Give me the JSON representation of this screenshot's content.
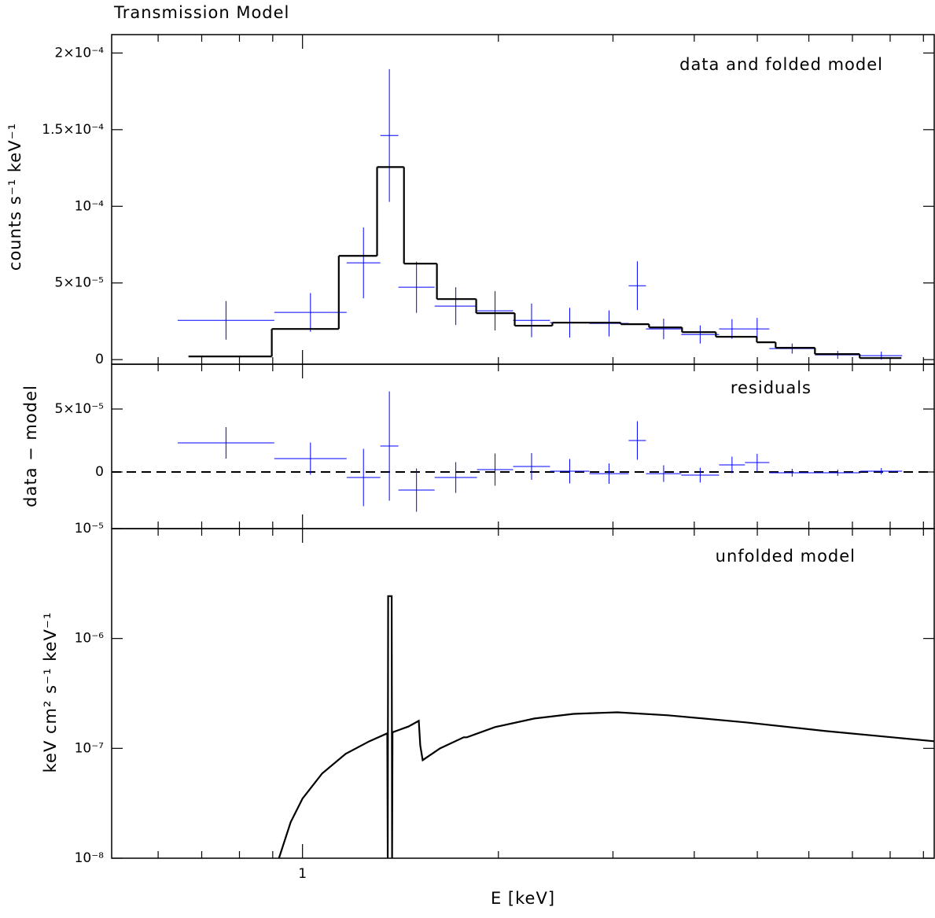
{
  "chart_data": [
    {
      "type": "step",
      "title": "Transmission Model",
      "annotation": "data and folded model",
      "ylabel": "counts s⁻¹ keV⁻¹",
      "xscale": "log",
      "xlim": [
        0.509,
        9.35
      ],
      "xticks": [
        1
      ],
      "xminorticks": [
        0.6,
        0.7,
        0.8,
        0.9,
        2,
        3,
        4,
        5,
        6,
        7,
        8,
        9
      ],
      "ylim": [
        -3e-06,
        0.000212
      ],
      "yticks": [
        {
          "value": 0.0002,
          "label": "2×10⁻⁴"
        },
        {
          "value": 0.00015,
          "label": "1.5×10⁻⁴"
        },
        {
          "value": 0.0001,
          "label": "10⁻⁴"
        },
        {
          "value": 5e-05,
          "label": "5×10⁻⁵"
        },
        0
      ],
      "data": {
        "color": "#0000ff",
        "bins": [
          0.643,
          0.905,
          1.169,
          1.317,
          1.404,
          1.596,
          1.854,
          2.107,
          2.401,
          2.76,
          3.171,
          3.372,
          3.82,
          4.367,
          4.786,
          5.217,
          6.131,
          7.202,
          8.348
        ],
        "values": [
          2.56e-05,
          3.08e-05,
          6.31e-05,
          0.0001462,
          4.72e-05,
          3.49e-05,
          3.18e-05,
          2.56e-05,
          2.41e-05,
          2.36e-05,
          4.82e-05,
          2e-05,
          1.64e-05,
          2e-05,
          2e-05,
          7.2e-06,
          3.1e-06,
          2.6e-06
        ],
        "errors": [
          1.26e-05,
          1.26e-05,
          2.31e-05,
          4.33e-05,
          1.67e-05,
          1.23e-05,
          1.28e-05,
          1.1e-05,
          9.7e-06,
          8.5e-06,
          1.59e-05,
          6.7e-06,
          5.9e-06,
          6.4e-06,
          7.2e-06,
          3.3e-06,
          2.6e-06,
          2.6e-06
        ]
      },
      "model": {
        "color": "#000000",
        "bins": [
          0.668,
          0.897,
          1.137,
          1.302,
          1.432,
          1.609,
          1.849,
          2.119,
          2.421,
          3.084,
          3.409,
          3.831,
          4.318,
          4.991,
          5.335,
          6.131,
          7.182,
          8.325
        ],
        "values": [
          2.05e-06,
          2e-05,
          6.77e-05,
          0.0001256,
          6.26e-05,
          3.95e-05,
          3.03e-05,
          2.21e-05,
          2.41e-05,
          2.31e-05,
          2.1e-05,
          1.79e-05,
          1.49e-05,
          1.13e-05,
          7.7e-06,
          3.6e-06,
          1e-06
        ]
      }
    },
    {
      "type": "residual",
      "annotation": "residuals",
      "ylabel": "data − model",
      "xscale": "log",
      "xlim": [
        0.509,
        9.35
      ],
      "xticks": [
        1
      ],
      "xminorticks": [
        0.6,
        0.7,
        0.8,
        0.9,
        2,
        3,
        4,
        5,
        6,
        7,
        8,
        9
      ],
      "ylim": [
        -4.5e-05,
        8.56e-05
      ],
      "yticks": [
        {
          "value": 5e-05,
          "label": "5×10⁻⁵"
        },
        0
      ],
      "hline": 0,
      "hline_style": "dashed",
      "data": {
        "color": "#0000ff",
        "bins": [
          0.643,
          0.905,
          1.169,
          1.317,
          1.404,
          1.596,
          1.854,
          2.107,
          2.401,
          2.76,
          3.171,
          3.372,
          3.82,
          4.367,
          4.786,
          5.217,
          6.131,
          7.202,
          8.348
        ],
        "values": [
          2.31e-05,
          1.06e-05,
          -4.4e-06,
          2.06e-05,
          -1.44e-05,
          -4.4e-06,
          1.9e-06,
          4.4e-06,
          6e-07,
          -1.3e-06,
          2.5e-05,
          -1.3e-06,
          -2.5e-06,
          5.6e-06,
          7.5e-06,
          -6e-07,
          -6e-07,
          6e-07
        ],
        "errors": [
          1.25e-05,
          1.28e-05,
          2.28e-05,
          4.34e-05,
          1.72e-05,
          1.22e-05,
          1.28e-05,
          1.06e-05,
          9.7e-06,
          8.1e-06,
          1.53e-05,
          6.6e-06,
          5.9e-06,
          6.6e-06,
          6.9e-06,
          3.1e-06,
          2.5e-06,
          2.5e-06
        ]
      }
    },
    {
      "type": "line",
      "annotation": "unfolded model",
      "ylabel": "keV cm² s⁻¹ keV⁻¹",
      "xlabel": "E [keV]",
      "xscale": "log",
      "xlim": [
        0.509,
        9.35
      ],
      "xticks": [
        1
      ],
      "xminorticks": [
        0.6,
        0.7,
        0.8,
        0.9,
        2,
        3,
        4,
        5,
        6,
        7,
        8,
        9
      ],
      "yscale": "log",
      "ylim": [
        1e-08,
        1e-05
      ],
      "yticks": [
        {
          "value": 1e-05,
          "label": "10⁻⁵"
        },
        {
          "value": 1e-06,
          "label": "10⁻⁶"
        },
        {
          "value": 1e-07,
          "label": "10⁻⁷"
        },
        {
          "value": 1e-08,
          "label": "10⁻⁸"
        }
      ],
      "color": "#000000",
      "x": [
        0.92,
        0.959,
        1.0,
        1.072,
        1.165,
        1.267,
        1.35,
        1.352,
        1.354,
        1.371,
        1.373,
        1.375,
        1.455,
        1.509,
        1.517,
        1.53,
        1.627,
        1.769,
        1.789,
        1.976,
        2.272,
        2.61,
        3.045,
        3.644,
        4.814,
        6.352,
        9.35
      ],
      "values": [
        1e-08,
        2.13e-08,
        3.49e-08,
        5.91e-08,
        8.91e-08,
        1.16e-07,
        1.37e-07,
        1e-08,
        2.43e-06,
        2.43e-06,
        1e-08,
        1.4e-07,
        1.58e-07,
        1.78e-07,
        1.06e-07,
        7.81e-08,
        1e-07,
        1.26e-07,
        1.26e-07,
        1.56e-07,
        1.87e-07,
        2.06e-07,
        2.13e-07,
        2e-07,
        1.72e-07,
        1.44e-07,
        1.16e-07
      ]
    }
  ]
}
